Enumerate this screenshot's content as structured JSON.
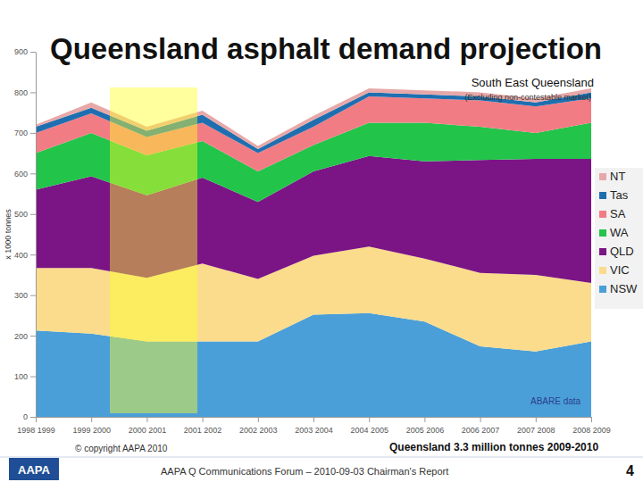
{
  "chart_data": {
    "type": "area",
    "stacked": true,
    "title": "Queensland asphalt demand projection",
    "y_label": "x 1000 tonnes",
    "categories": [
      "1998 1999",
      "1999 2000",
      "2000 2001",
      "2001 2002",
      "2002 2003",
      "2003 2004",
      "2004 2005",
      "2005 2006",
      "2006 2007",
      "2007 2008",
      "2008 2009"
    ],
    "series": [
      {
        "name": "NSW",
        "color": "#4b9fd8",
        "values": [
          213,
          205,
          186,
          186,
          186,
          252,
          256,
          235,
          174,
          161,
          186
        ]
      },
      {
        "name": "VIC",
        "color": "#fadc8c",
        "values": [
          154,
          162,
          157,
          192,
          154,
          145,
          164,
          155,
          181,
          189,
          144
        ]
      },
      {
        "name": "QLD",
        "color": "#7b1585",
        "values": [
          193,
          226,
          203,
          212,
          190,
          208,
          223,
          240,
          278,
          286,
          306
        ]
      },
      {
        "name": "WA",
        "color": "#22c44a",
        "values": [
          90,
          107,
          99,
          90,
          75,
          65,
          82,
          95,
          82,
          64,
          89
        ]
      },
      {
        "name": "SA",
        "color": "#f27c84",
        "values": [
          50,
          48,
          45,
          45,
          45,
          45,
          65,
          60,
          65,
          65,
          60
        ]
      },
      {
        "name": "Tas",
        "color": "#1f6fb0",
        "values": [
          15,
          14,
          15,
          20,
          10,
          17,
          10,
          10,
          10,
          10,
          15
        ]
      },
      {
        "name": "NT",
        "color": "#e8a8a8",
        "values": [
          5,
          13,
          10,
          10,
          8,
          10,
          10,
          10,
          10,
          10,
          10
        ]
      }
    ],
    "ylim": [
      0,
      900
    ],
    "yticks": [
      0,
      100,
      200,
      300,
      400,
      500,
      600,
      700,
      800,
      900
    ],
    "grid": false,
    "legend": "right",
    "annotations": {
      "region": "South East Queensland",
      "region_note": "(Excluding non-contestable market)",
      "source": "ABARE data"
    }
  },
  "footer": {
    "copyright": "© copyright AAPA 2010",
    "headline": "Queensland 3.3 million tonnes 2009-2010",
    "event": "AAPA Q Communications Forum – 2010-09-03 Chairman's Report",
    "page": "4",
    "logo": "AAPA"
  }
}
